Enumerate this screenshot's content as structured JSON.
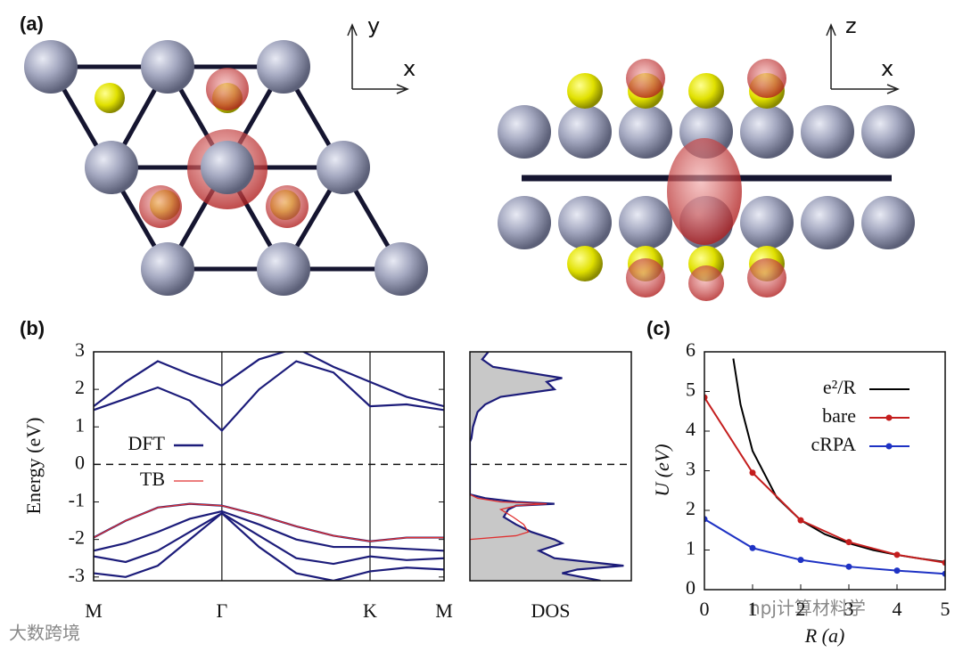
{
  "panels": [
    "(a)",
    "(b)",
    "(c)"
  ],
  "structure_axes": {
    "left": [
      "y",
      "x"
    ],
    "right": [
      "z",
      "x"
    ]
  },
  "watermarks": [
    "大数跨境",
    "npj计算材料学"
  ],
  "chart_data": [
    {
      "type": "bands",
      "ylabel": "Energy (eV)",
      "ylim": [
        -3.1,
        3
      ],
      "yticks": [
        -3,
        -2,
        -1,
        0,
        1,
        2,
        3
      ],
      "xlim": [
        0,
        2.732
      ],
      "xticks": [
        {
          "value": 0,
          "label": "M"
        },
        {
          "value": 1,
          "label": "Γ"
        },
        {
          "value": 2.155,
          "label": "K"
        },
        {
          "value": 2.732,
          "label": "M"
        }
      ],
      "fermi_level": 0,
      "x": [
        0,
        0.25,
        0.5,
        0.75,
        1,
        1.29,
        1.58,
        1.87,
        2.155,
        2.44,
        2.732
      ],
      "series": [
        {
          "name": "DFT",
          "color": "#1c1c7a",
          "bands": [
            [
              1.45,
              1.75,
              2.05,
              1.7,
              0.9,
              2.0,
              2.75,
              2.45,
              1.55,
              1.6,
              1.45
            ],
            [
              1.55,
              2.2,
              2.75,
              2.4,
              2.1,
              2.8,
              3.1,
              2.6,
              2.2,
              1.8,
              1.55
            ],
            [
              -1.95,
              -1.5,
              -1.15,
              -1.05,
              -1.1,
              -1.35,
              -1.65,
              -1.9,
              -2.05,
              -1.95,
              -1.95
            ],
            [
              -2.3,
              -2.1,
              -1.8,
              -1.45,
              -1.25,
              -1.6,
              -2.0,
              -2.2,
              -2.2,
              -2.25,
              -2.3
            ],
            [
              -2.45,
              -2.6,
              -2.3,
              -1.8,
              -1.3,
              -1.9,
              -2.5,
              -2.65,
              -2.45,
              -2.55,
              -2.5
            ],
            [
              -2.9,
              -3.0,
              -2.7,
              -2.0,
              -1.3,
              -2.2,
              -2.9,
              -3.1,
              -2.85,
              -2.75,
              -2.8
            ]
          ]
        },
        {
          "name": "TB",
          "color": "#e03030",
          "bands": [
            [
              -1.95,
              -1.5,
              -1.15,
              -1.05,
              -1.1,
              -1.35,
              -1.65,
              -1.9,
              -2.05,
              -1.95,
              -1.95
            ]
          ]
        }
      ]
    },
    {
      "type": "dos",
      "xlabel": "DOS",
      "xlim": [
        0,
        1.05
      ],
      "ylim": [
        -3.1,
        3
      ],
      "fermi_level": 0,
      "series": [
        {
          "color": "#1c1c7a",
          "fill": "#c8c8c8",
          "y": [
            3,
            2.8,
            2.6,
            2.4,
            2.3,
            2.2,
            2.0,
            1.8,
            1.6,
            1.4,
            1.0,
            0.7,
            0.6,
            -0.8,
            -0.9,
            -1.0,
            -1.05,
            -1.1,
            -1.2,
            -1.4,
            -1.6,
            -1.8,
            -2.0,
            -2.1,
            -2.3,
            -2.5,
            -2.7,
            -2.8,
            -2.9,
            -3.1
          ],
          "values": [
            0.12,
            0.08,
            0.15,
            0.45,
            0.6,
            0.5,
            0.55,
            0.2,
            0.1,
            0.05,
            0.02,
            0.01,
            0,
            0,
            0.1,
            0.3,
            0.55,
            0.3,
            0.25,
            0.22,
            0.3,
            0.4,
            0.55,
            0.6,
            0.45,
            0.55,
            1.0,
            0.7,
            0.6,
            0.85
          ]
        },
        {
          "color": "#e03030",
          "y": [
            -0.8,
            -0.9,
            -1.0,
            -1.05,
            -1.1,
            -1.2,
            -1.4,
            -1.6,
            -1.8,
            -1.9,
            -2.0
          ],
          "values": [
            0,
            0.05,
            0.2,
            0.5,
            0.3,
            0.2,
            0.28,
            0.35,
            0.38,
            0.3,
            0
          ]
        }
      ]
    },
    {
      "type": "line",
      "xlabel": "R (a)",
      "ylabel": "U (eV)",
      "xlim": [
        0,
        5
      ],
      "ylim": [
        0,
        6
      ],
      "xticks": [
        0,
        1,
        2,
        3,
        4,
        5
      ],
      "yticks": [
        0,
        1,
        2,
        3,
        4,
        5,
        6
      ],
      "legend": "upper right",
      "series": [
        {
          "name": "e²/R",
          "color": "#000000",
          "markers": false,
          "x": [
            0.6,
            0.75,
            1,
            1.5,
            2,
            2.5,
            3,
            3.5,
            4,
            4.5,
            5
          ],
          "values": [
            5.83,
            4.67,
            3.5,
            2.33,
            1.75,
            1.4,
            1.17,
            1.0,
            0.875,
            0.78,
            0.7
          ]
        },
        {
          "name": "bare",
          "color": "#c41e1e",
          "markers": true,
          "x": [
            0,
            1,
            2,
            3,
            4,
            5
          ],
          "values": [
            4.85,
            2.95,
            1.75,
            1.2,
            0.88,
            0.68
          ]
        },
        {
          "name": "cRPA",
          "color": "#1e32c4",
          "markers": true,
          "x": [
            0,
            1,
            2,
            3,
            4,
            5
          ],
          "values": [
            1.78,
            1.05,
            0.75,
            0.58,
            0.48,
            0.4
          ]
        }
      ]
    }
  ]
}
